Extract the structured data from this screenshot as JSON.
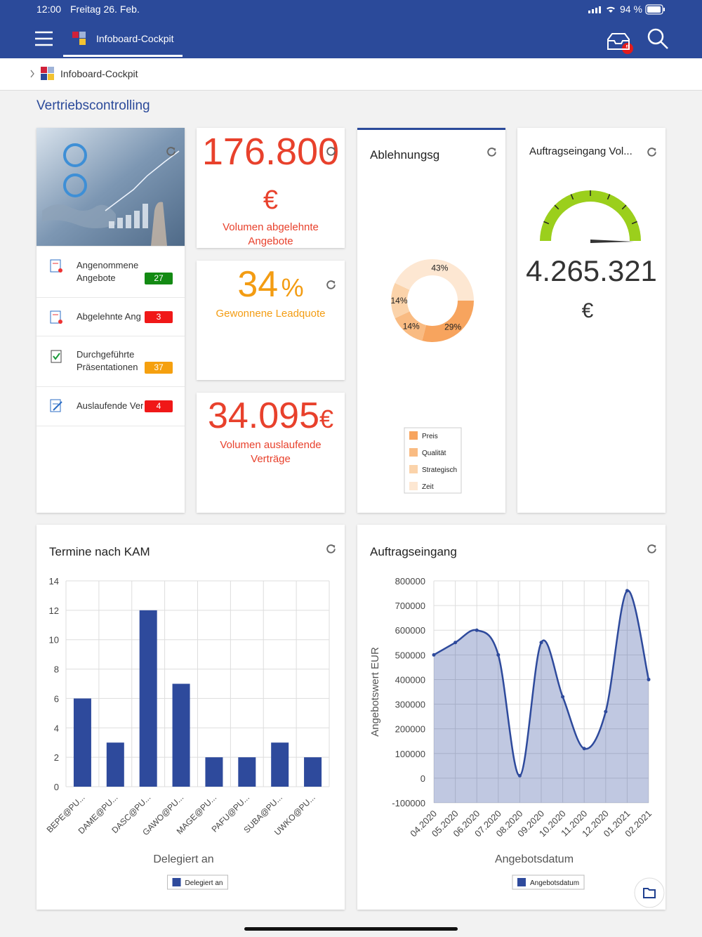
{
  "status_bar": {
    "time": "12:00",
    "date": "Freitag 26. Feb.",
    "battery": "94 %"
  },
  "nav": {
    "title": "Infoboard-Cockpit",
    "badge": "5"
  },
  "breadcrumb": "Infoboard-Cockpit",
  "page_title": "Vertriebscontrolling",
  "task_list": [
    {
      "label": "Angenommene Angebote",
      "count": 27,
      "color": "#138a13"
    },
    {
      "label": "Abgelehnte Ang",
      "count": 3,
      "color": "#f01818"
    },
    {
      "label": "Durchgeführte Präsentationen",
      "count": 37,
      "color": "#f5a00f"
    },
    {
      "label": "Auslaufende Ver",
      "count": 4,
      "color": "#f01818"
    }
  ],
  "kpis": [
    {
      "value": "176.800",
      "unit": "€",
      "label": "Volumen abgelehnte Angebote",
      "color": "#e8412c"
    },
    {
      "value": "34",
      "unit": "%",
      "label": "Gewonnene Leadquote",
      "color": "#f39c12"
    },
    {
      "value": "34.095",
      "unit": "€",
      "label": "Volumen auslaufende Verträge",
      "color": "#e8412c"
    }
  ],
  "gauge_card": {
    "title": "Auftragseingang Vol...",
    "value": "4.265.321",
    "unit": "€",
    "color": "#9bcf1c"
  },
  "chart_data": [
    {
      "type": "donut",
      "title": "Ablehnungsg",
      "categories": [
        "Preis",
        "Qualität",
        "Strategisch",
        "Zeit"
      ],
      "values": [
        29,
        14,
        14,
        43
      ],
      "value_labels": [
        "29%",
        "14%",
        "14%",
        "43%"
      ],
      "colors": [
        "#f7a45e",
        "#f9bb82",
        "#fbd3aa",
        "#fde7d2"
      ]
    },
    {
      "type": "bar",
      "title": "Termine nach KAM",
      "categories": [
        "BEPE@PU...",
        "DAME@PU...",
        "DASC@PU...",
        "GAWO@PU...",
        "MAGE@PU...",
        "PAFU@PU...",
        "SUBA@PU...",
        "UWKO@PU..."
      ],
      "series": [
        {
          "name": "Delegiert an",
          "color": "#2e4a9c",
          "values": [
            6,
            3,
            12,
            7,
            2,
            2,
            3,
            2
          ]
        }
      ],
      "xlabel": "Delegiert an",
      "ylim": [
        0,
        14
      ],
      "yticks": [
        0,
        2,
        4,
        6,
        8,
        10,
        12,
        14
      ],
      "grid": true
    },
    {
      "type": "area",
      "title": "Auftragseingang",
      "categories": [
        "04.2020",
        "05.2020",
        "06.2020",
        "07.2020",
        "08.2020",
        "09.2020",
        "10.2020",
        "11.2020",
        "12.2020",
        "01.2021",
        "02.2021"
      ],
      "series": [
        {
          "name": "Angebotsdatum",
          "color": "#2e4a9c",
          "values": [
            500000,
            550000,
            600000,
            500000,
            10000,
            550000,
            330000,
            120000,
            270000,
            760000,
            400000
          ]
        }
      ],
      "xlabel": "Angebotsdatum",
      "ylabel": "Angebotswert EUR",
      "ylim": [
        -100000,
        800000
      ],
      "yticks": [
        -100000,
        0,
        100000,
        200000,
        300000,
        400000,
        500000,
        600000,
        700000,
        800000
      ],
      "grid": true
    }
  ]
}
